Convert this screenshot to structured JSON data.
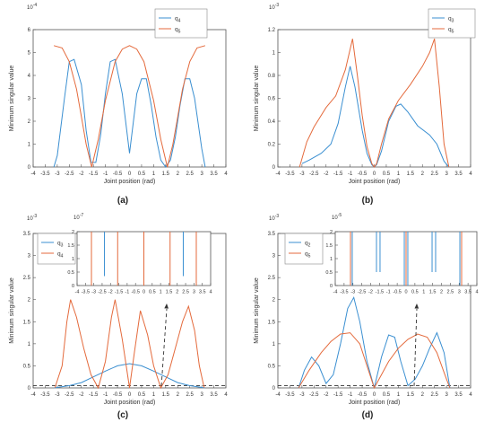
{
  "figure": {
    "panel_labels": [
      "(a)",
      "(b)",
      "(c)",
      "(d)"
    ]
  },
  "colors": {
    "series_1": "#3a8fd1",
    "series_2": "#e46a3c",
    "axis": "#555555",
    "dashed": "#333333"
  },
  "chart_data": [
    {
      "id": "a",
      "type": "line",
      "xlabel": "Joint position (rad)",
      "ylabel": "Minimum singular value",
      "exponent": "10",
      "exponent_power": "-4",
      "xlim": [
        -4,
        4
      ],
      "ylim": [
        0,
        6
      ],
      "xticks": [
        "-4",
        "-3.5",
        "-3",
        "-2.5",
        "-2",
        "-1.5",
        "-1",
        "-0.5",
        "0",
        "0.5",
        "1",
        "1.5",
        "2",
        "2.5",
        "3",
        "3.5",
        "4"
      ],
      "yticks": [
        "0",
        "1",
        "2",
        "3",
        "4",
        "5",
        "6"
      ],
      "legend": {
        "position": "top-right"
      },
      "series": [
        {
          "name": "q4",
          "label_main": "q",
          "label_sub": "4",
          "color": "#3a8fd1",
          "x": [
            -3.14,
            -3.0,
            -2.7,
            -2.5,
            -2.3,
            -2.0,
            -1.8,
            -1.6,
            -1.4,
            -1.2,
            -1.0,
            -0.8,
            -0.6,
            -0.3,
            0.0,
            0.3,
            0.5,
            0.7,
            0.9,
            1.1,
            1.3,
            1.5,
            1.7,
            1.9,
            2.1,
            2.3,
            2.5,
            2.7,
            3.0,
            3.14
          ],
          "y": [
            0.0,
            0.5,
            3.0,
            4.6,
            4.7,
            3.6,
            1.6,
            0.2,
            0.2,
            1.4,
            3.2,
            4.6,
            4.7,
            3.2,
            0.6,
            3.2,
            3.85,
            3.85,
            2.7,
            1.3,
            0.3,
            0.0,
            0.3,
            1.3,
            2.7,
            3.85,
            3.85,
            3.0,
            0.8,
            0.0
          ]
        },
        {
          "name": "q5",
          "label_main": "q",
          "label_sub": "5",
          "color": "#e46a3c",
          "x": [
            -3.14,
            -2.8,
            -2.5,
            -2.2,
            -2.0,
            -1.8,
            -1.57,
            -1.3,
            -1.0,
            -0.6,
            -0.3,
            0.0,
            0.3,
            0.6,
            1.0,
            1.3,
            1.57,
            1.8,
            2.0,
            2.2,
            2.5,
            2.8,
            3.14
          ],
          "y": [
            5.3,
            5.2,
            4.6,
            3.4,
            2.2,
            1.0,
            0.0,
            1.2,
            2.9,
            4.6,
            5.15,
            5.3,
            5.15,
            4.6,
            2.9,
            1.2,
            0.0,
            1.0,
            2.2,
            3.4,
            4.6,
            5.2,
            5.3
          ]
        }
      ]
    },
    {
      "id": "b",
      "type": "line",
      "xlabel": "Joint position (rad)",
      "ylabel": "Minimum singular value",
      "exponent": "10",
      "exponent_power": "-3",
      "xlim": [
        -4,
        4
      ],
      "ylim": [
        0,
        1.2
      ],
      "xticks": [
        "-4",
        "-3.5",
        "-3",
        "-2.5",
        "-2",
        "-1.5",
        "-1",
        "-0.5",
        "0",
        "0.5",
        "1",
        "1.5",
        "2",
        "2.5",
        "3",
        "3.5",
        "4"
      ],
      "yticks": [
        "0",
        "0.2",
        "0.4",
        "0.6",
        "0.8",
        "1",
        "1.2"
      ],
      "legend": {
        "position": "top-right"
      },
      "series": [
        {
          "name": "q3",
          "label_main": "q",
          "label_sub": "3",
          "color": "#3a8fd1",
          "x": [
            -3.0,
            -2.7,
            -2.2,
            -1.8,
            -1.5,
            -1.2,
            -1.0,
            -0.8,
            -0.5,
            -0.3,
            -0.1,
            0.0,
            0.1,
            0.3,
            0.6,
            0.9,
            1.1,
            1.4,
            1.8,
            2.3,
            2.6,
            2.9,
            3.1
          ],
          "y": [
            0.03,
            0.06,
            0.12,
            0.2,
            0.38,
            0.7,
            0.88,
            0.7,
            0.32,
            0.12,
            0.02,
            0.0,
            0.02,
            0.14,
            0.4,
            0.53,
            0.55,
            0.48,
            0.36,
            0.28,
            0.2,
            0.05,
            0.0
          ]
        },
        {
          "name": "q5",
          "label_main": "q",
          "label_sub": "5",
          "color": "#e46a3c",
          "x": [
            -3.1,
            -2.8,
            -2.5,
            -2.0,
            -1.6,
            -1.2,
            -0.9,
            -0.7,
            -0.5,
            -0.3,
            -0.1,
            0.0,
            0.1,
            0.3,
            0.6,
            1.0,
            1.5,
            2.0,
            2.3,
            2.5,
            2.7,
            2.9,
            3.1
          ],
          "y": [
            0.0,
            0.22,
            0.35,
            0.52,
            0.62,
            0.85,
            1.12,
            0.8,
            0.45,
            0.18,
            0.03,
            0.0,
            0.03,
            0.2,
            0.42,
            0.58,
            0.72,
            0.88,
            1.0,
            1.12,
            0.7,
            0.2,
            0.0
          ]
        }
      ]
    },
    {
      "id": "c",
      "type": "line",
      "xlabel": "Joint position (rad)",
      "ylabel": "Minimum singular value",
      "exponent": "10",
      "exponent_power": "-3",
      "xlim": [
        -4,
        4
      ],
      "ylim": [
        0,
        3.5
      ],
      "xticks": [
        "-4",
        "-3.5",
        "-3",
        "-2.5",
        "-2",
        "-1.5",
        "-1",
        "-0.5",
        "0",
        "0.5",
        "1",
        "1.5",
        "2",
        "2.5",
        "3",
        "3.5",
        "4"
      ],
      "yticks": [
        "0",
        "0.5",
        "1",
        "1.5",
        "2",
        "2.5",
        "3",
        "3.5"
      ],
      "legend": {
        "position": "top-left"
      },
      "dashed_y": 0.05,
      "series": [
        {
          "name": "q3",
          "label_main": "q",
          "label_sub": "3",
          "color": "#3a8fd1",
          "x": [
            -3.14,
            -2.5,
            -2.0,
            -1.5,
            -1.0,
            -0.5,
            0.0,
            0.5,
            1.0,
            1.5,
            2.0,
            2.5,
            3.14
          ],
          "y": [
            0.0,
            0.05,
            0.12,
            0.25,
            0.38,
            0.5,
            0.55,
            0.5,
            0.38,
            0.25,
            0.12,
            0.05,
            0.0
          ]
        },
        {
          "name": "q4",
          "label_main": "q",
          "label_sub": "4",
          "color": "#e46a3c",
          "x": [
            -3.1,
            -2.8,
            -2.6,
            -2.45,
            -2.2,
            -1.9,
            -1.6,
            -1.3,
            -1.0,
            -0.75,
            -0.6,
            -0.3,
            0.0,
            0.2,
            0.45,
            0.75,
            1.0,
            1.3,
            1.6,
            1.9,
            2.2,
            2.45,
            2.7,
            2.9,
            3.1
          ],
          "y": [
            0.0,
            0.5,
            1.5,
            2.0,
            1.6,
            0.9,
            0.3,
            0.0,
            0.6,
            1.6,
            2.0,
            1.1,
            0.0,
            0.8,
            1.75,
            1.2,
            0.5,
            0.0,
            0.3,
            0.9,
            1.5,
            1.85,
            1.3,
            0.5,
            0.0
          ]
        }
      ],
      "inset": {
        "exponent": "10",
        "exponent_power": "-7",
        "xlim": [
          -4,
          4
        ],
        "ylim": [
          0,
          2
        ],
        "xticks": [
          "-4",
          "-3.5",
          "-3",
          "-2.5",
          "-2",
          "-1.5",
          "-1",
          "-0.5",
          "0",
          "0.5",
          "1",
          "1.5",
          "2",
          "2.5",
          "3",
          "3.5",
          "4"
        ],
        "yticks": [
          "0",
          "0.5",
          "1",
          "1.5",
          "2"
        ],
        "spikes": [
          {
            "x": -3.14,
            "y_from": 0.0,
            "y_to": 2.0,
            "color": "#e46a3c"
          },
          {
            "x": -2.36,
            "y_from": 0.35,
            "y_to": 2.0,
            "color": "#3a8fd1"
          },
          {
            "x": -1.57,
            "y_from": 0.0,
            "y_to": 2.0,
            "color": "#e46a3c"
          },
          {
            "x": 0.0,
            "y_from": 0.0,
            "y_to": 2.0,
            "color": "#e46a3c"
          },
          {
            "x": 1.57,
            "y_from": 0.0,
            "y_to": 2.0,
            "color": "#e46a3c"
          },
          {
            "x": 2.36,
            "y_from": 0.35,
            "y_to": 2.0,
            "color": "#3a8fd1"
          },
          {
            "x": 3.14,
            "y_from": 0.0,
            "y_to": 2.0,
            "color": "#e46a3c"
          }
        ]
      }
    },
    {
      "id": "d",
      "type": "line",
      "xlabel": "Joint position (rad)",
      "ylabel": "Minimum singular value",
      "exponent": "10",
      "exponent_power": "-3",
      "xlim": [
        -4,
        4
      ],
      "ylim": [
        0,
        3.5
      ],
      "xticks": [
        "-4",
        "-3.5",
        "-3",
        "-2.5",
        "-2",
        "-1.5",
        "-1",
        "-0.5",
        "0",
        "0.5",
        "1",
        "1.5",
        "2",
        "2.5",
        "3",
        "3.5",
        "4"
      ],
      "yticks": [
        "0",
        "0.5",
        "1",
        "1.5",
        "2",
        "2.5",
        "3",
        "3.5"
      ],
      "legend": {
        "position": "top-left"
      },
      "dashed_y": 0.05,
      "series": [
        {
          "name": "q2",
          "label_main": "q",
          "label_sub": "2",
          "color": "#3a8fd1",
          "x": [
            -3.14,
            -2.9,
            -2.6,
            -2.3,
            -2.0,
            -1.7,
            -1.4,
            -1.1,
            -0.85,
            -0.6,
            -0.3,
            0.0,
            0.3,
            0.6,
            0.85,
            1.1,
            1.4,
            1.7,
            2.0,
            2.3,
            2.6,
            2.9,
            3.14
          ],
          "y": [
            0.0,
            0.4,
            0.7,
            0.5,
            0.1,
            0.3,
            1.0,
            1.8,
            2.05,
            1.5,
            0.6,
            0.0,
            0.7,
            1.2,
            1.15,
            0.6,
            0.05,
            0.2,
            0.5,
            0.9,
            1.25,
            0.8,
            0.0
          ]
        },
        {
          "name": "q5",
          "label_main": "q",
          "label_sub": "5",
          "color": "#e46a3c",
          "x": [
            -3.14,
            -2.7,
            -2.2,
            -1.8,
            -1.4,
            -1.0,
            -0.6,
            -0.3,
            0.0,
            0.3,
            0.6,
            1.0,
            1.4,
            1.8,
            2.2,
            2.6,
            3.0,
            3.14
          ],
          "y": [
            0.0,
            0.4,
            0.8,
            1.05,
            1.22,
            1.25,
            1.0,
            0.5,
            0.0,
            0.3,
            0.6,
            0.9,
            1.1,
            1.22,
            1.15,
            0.8,
            0.2,
            0.0
          ]
        }
      ],
      "inset": {
        "exponent": "10",
        "exponent_power": "-5",
        "xlim": [
          -4,
          4
        ],
        "ylim": [
          0,
          2
        ],
        "xticks": [
          "-4",
          "-3.5",
          "-3",
          "-2.5",
          "-2",
          "-1.5",
          "-1",
          "-0.5",
          "0",
          "0.5",
          "1",
          "1.5",
          "2",
          "2.5",
          "3",
          "3.5",
          "4"
        ],
        "yticks": [
          "0",
          "0.5",
          "1",
          "1.5",
          "2"
        ],
        "spikes": [
          {
            "x": -3.14,
            "y_from": 0.0,
            "y_to": 2.0,
            "color": "#e46a3c"
          },
          {
            "x": -3.04,
            "y_from": 0.0,
            "y_to": 2.0,
            "color": "#3a8fd1"
          },
          {
            "x": -1.67,
            "y_from": 0.5,
            "y_to": 2.0,
            "color": "#3a8fd1"
          },
          {
            "x": -1.47,
            "y_from": 0.5,
            "y_to": 2.0,
            "color": "#3a8fd1"
          },
          {
            "x": -0.1,
            "y_from": 0.0,
            "y_to": 2.0,
            "color": "#3a8fd1"
          },
          {
            "x": 0.0,
            "y_from": 0.0,
            "y_to": 2.0,
            "color": "#e46a3c"
          },
          {
            "x": 0.1,
            "y_from": 0.0,
            "y_to": 2.0,
            "color": "#3a8fd1"
          },
          {
            "x": 1.47,
            "y_from": 0.5,
            "y_to": 2.0,
            "color": "#3a8fd1"
          },
          {
            "x": 1.67,
            "y_from": 0.5,
            "y_to": 2.0,
            "color": "#3a8fd1"
          },
          {
            "x": 3.04,
            "y_from": 0.0,
            "y_to": 2.0,
            "color": "#3a8fd1"
          },
          {
            "x": 3.14,
            "y_from": 0.0,
            "y_to": 2.0,
            "color": "#e46a3c"
          }
        ]
      }
    }
  ]
}
